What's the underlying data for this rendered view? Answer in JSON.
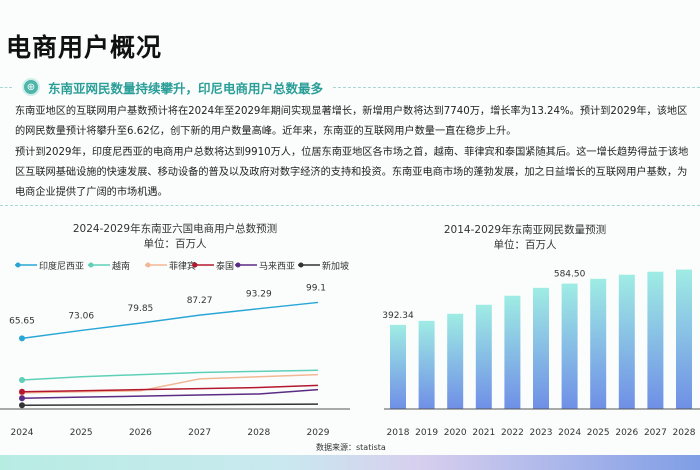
{
  "page": {
    "title": "电商用户概况",
    "section_title": "东南亚网民数量持续攀升，印尼电商用户总数最多",
    "paragraphs": [
      "东南亚地区的互联网用户基数预计将在2024年至2029年期间实现显著增长，新增用户数将达到7740万，增长率为13.24%。预计到2029年，该地区的网民数量预计将攀升至6.62亿，创下新的用户数量高峰。近年来，东南亚的互联网用户数量一直在稳步上升。",
      "预计到2029年，印度尼西亚的电商用户总数将达到9910万人，位居东南亚地区各市场之首，越南、菲律宾和泰国紧随其后。这一增长趋势得益于该地区互联网基础设施的快速发展、移动设备的普及以及政府对数字经济的支持和投资。东南亚电商市场的蓬勃发展，加之日益增长的互联网用户基数，为电商企业提供了广阔的市场机遇。"
    ],
    "source": "数据来源：statista",
    "icon": "globe-badge-icon",
    "accent": "#2b9e98"
  },
  "chart_data": [
    {
      "type": "line",
      "title": "2024-2029年东南亚六国电商用户总数预测",
      "subtitle": "单位：百万人",
      "legend": "top",
      "categories": [
        "2024",
        "2025",
        "2026",
        "2027",
        "2028",
        "2029"
      ],
      "ylim": [
        0,
        100
      ],
      "grid": false,
      "series": [
        {
          "name": "印度尼西亚",
          "color": "#2aa6d6",
          "values": [
            65.65,
            73.06,
            79.85,
            87.27,
            93.29,
            99.1
          ],
          "labels": [
            "65.65",
            "73.06",
            "79.85",
            "87.27",
            "93.29",
            "99.1"
          ]
        },
        {
          "name": "越南",
          "color": "#5fd0b8",
          "values": [
            27,
            30,
            32,
            34,
            35,
            36
          ]
        },
        {
          "name": "菲律宾",
          "color": "#f2b894",
          "values": [
            15,
            16,
            17,
            28,
            30,
            32
          ]
        },
        {
          "name": "泰国",
          "color": "#b3182e",
          "values": [
            16,
            17,
            18,
            19,
            20,
            22
          ]
        },
        {
          "name": "马来西亚",
          "color": "#5b2c83",
          "values": [
            10,
            11,
            12,
            13,
            14,
            18
          ]
        },
        {
          "name": "新加坡",
          "color": "#333333",
          "values": [
            3.5,
            3.7,
            3.9,
            4.1,
            4.3,
            4.5
          ]
        }
      ]
    },
    {
      "type": "bar",
      "title": "2014-2029年东南亚网民数量预测",
      "subtitle": "单位：百万人",
      "categories": [
        "2018",
        "2019",
        "2020",
        "2021",
        "2022",
        "2023",
        "2024",
        "2025",
        "2026",
        "2027",
        "2028"
      ],
      "values": [
        392.34,
        411,
        444,
        486,
        528,
        565,
        584.5,
        607,
        626,
        640,
        650
      ],
      "labels": {
        "0": "392.34",
        "6": "584.50"
      },
      "ylim": [
        0,
        700
      ],
      "colors": [
        "#9fece4",
        "#6f8fe6"
      ]
    }
  ]
}
